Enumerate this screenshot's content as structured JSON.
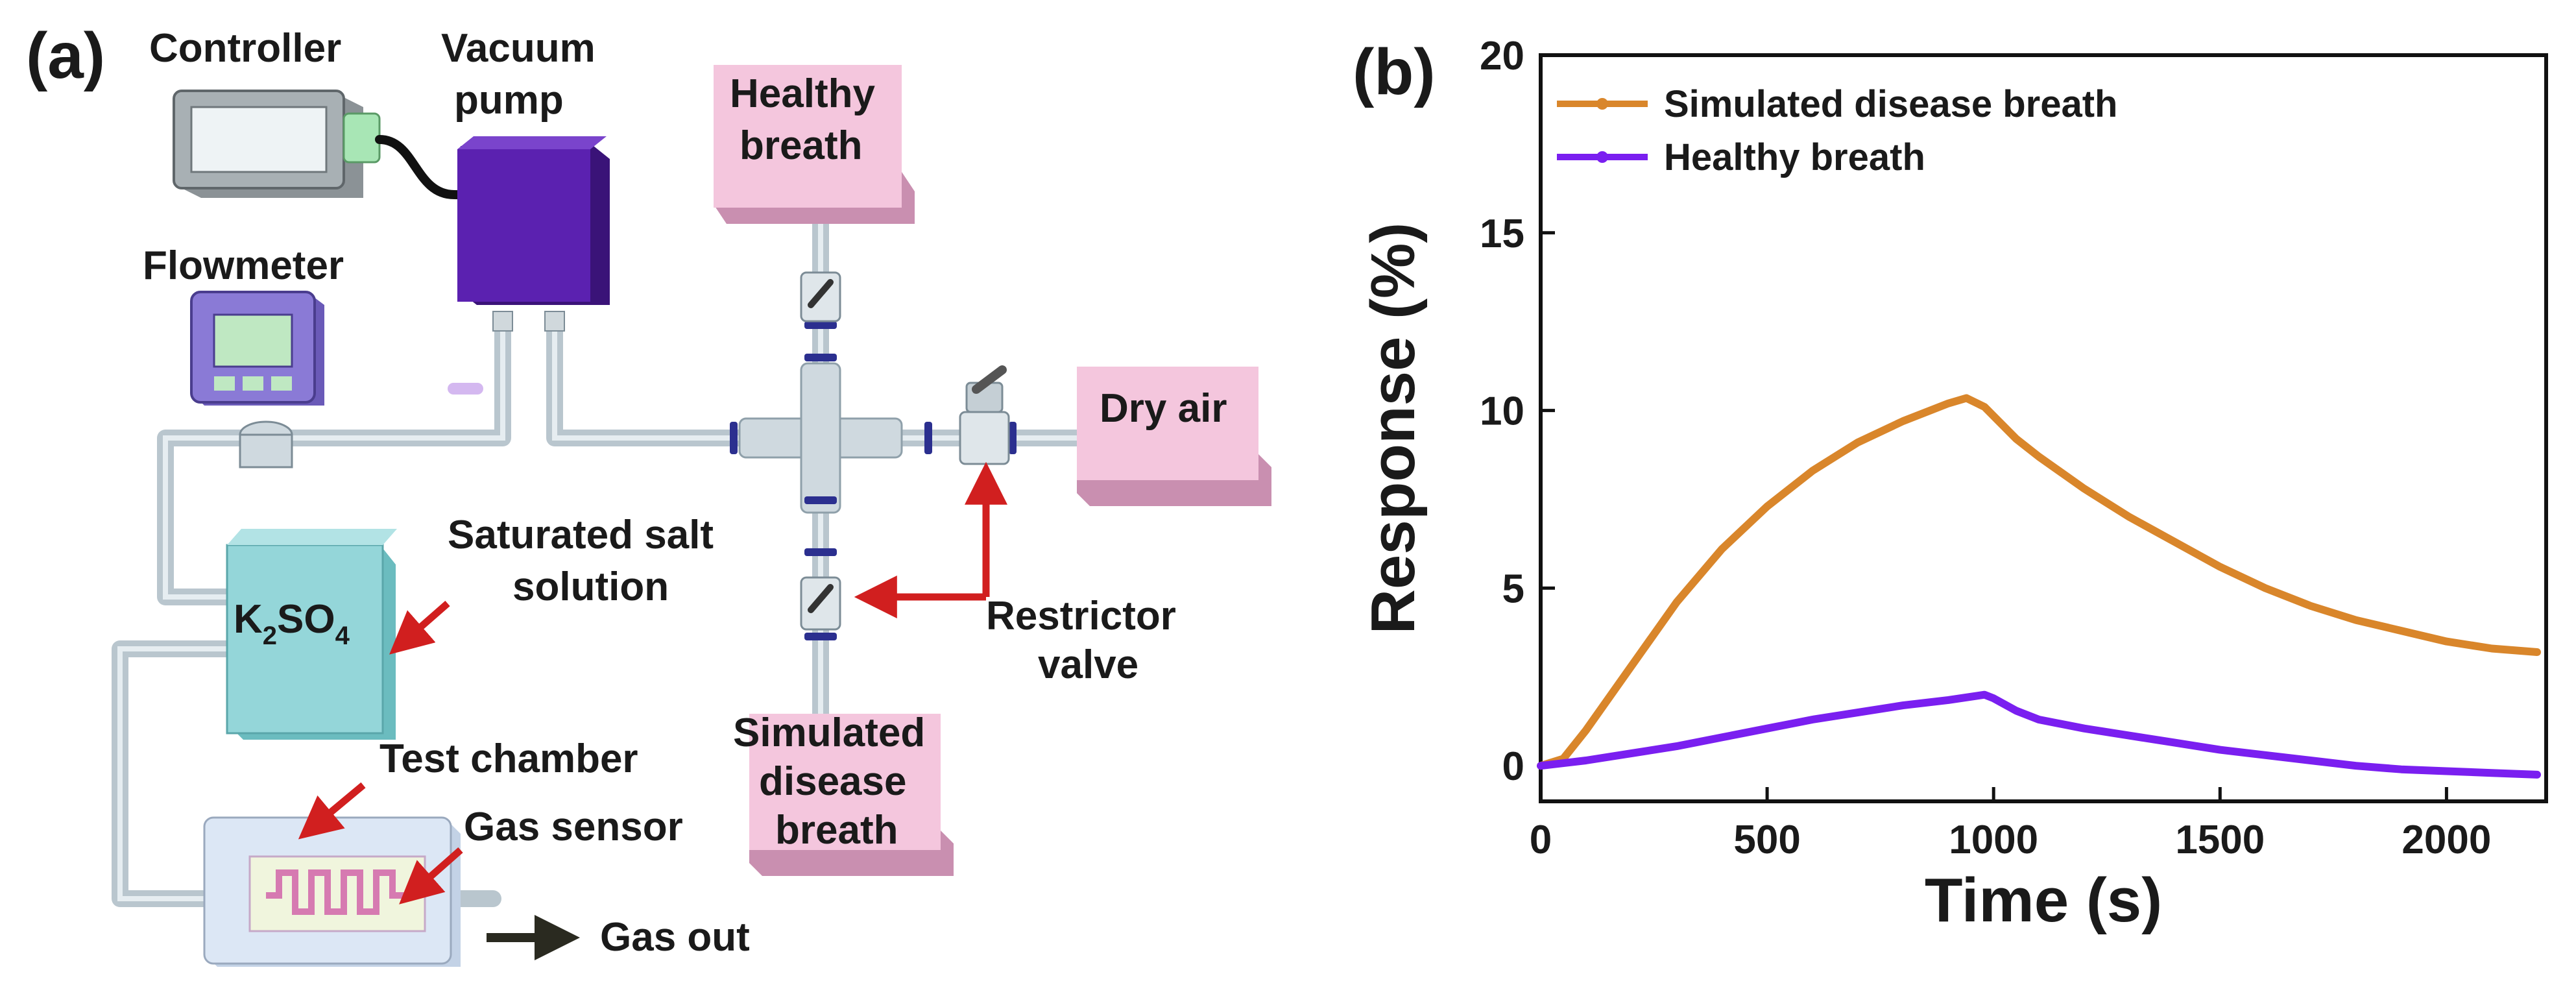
{
  "panel_a": {
    "label": "(a)",
    "components": {
      "controller": "Controller",
      "vacuum_pump_line1": "Vacuum",
      "vacuum_pump_line2": "pump",
      "healthy_breath_line1": "Healthy",
      "healthy_breath_line2": "breath",
      "flowmeter": "Flowmeter",
      "dry_air": "Dry air",
      "saturated_salt_line1": "Saturated salt",
      "saturated_salt_line2": "solution",
      "salt_formula_k": "K",
      "salt_formula_sub1": "2",
      "salt_formula_so": "SO",
      "salt_formula_sub2": "4",
      "restrictor_line1": "Restrictor",
      "restrictor_line2": "valve",
      "simulated_line1": "Simulated",
      "simulated_line2": "disease",
      "simulated_line3": "breath",
      "test_chamber": "Test chamber",
      "gas_sensor": "Gas sensor",
      "gas_out": "Gas out"
    },
    "colors": {
      "pink_box": "#f4c6dd",
      "pump": "#4d1a99",
      "salt_box": "#8fd3d6",
      "pipe": "#c8d3da",
      "arrow": "#d11f1f"
    }
  },
  "panel_b": {
    "label": "(b)"
  },
  "chart_data": {
    "type": "line",
    "title": "",
    "xlabel": "Time (s)",
    "ylabel": "Response (%)",
    "xlim": [
      0,
      2220
    ],
    "ylim": [
      -1,
      20
    ],
    "xticks": [
      0,
      500,
      1000,
      1500,
      2000
    ],
    "yticks": [
      0,
      5,
      10,
      15,
      20
    ],
    "legend_position": "top-left",
    "series": [
      {
        "name": "Simulated disease breath",
        "color": "#d9862b",
        "x": [
          0,
          50,
          100,
          200,
          300,
          400,
          500,
          600,
          700,
          800,
          900,
          940,
          980,
          1050,
          1100,
          1200,
          1300,
          1400,
          1500,
          1600,
          1700,
          1800,
          1900,
          2000,
          2100,
          2200
        ],
        "y": [
          0,
          0.2,
          1.0,
          2.8,
          4.6,
          6.1,
          7.3,
          8.3,
          9.1,
          9.7,
          10.2,
          10.35,
          10.1,
          9.2,
          8.7,
          7.8,
          7.0,
          6.3,
          5.6,
          5.0,
          4.5,
          4.1,
          3.8,
          3.5,
          3.3,
          3.2
        ]
      },
      {
        "name": "Healthy breath",
        "color": "#7a1ff0",
        "x": [
          0,
          100,
          200,
          300,
          400,
          500,
          560,
          600,
          700,
          800,
          900,
          980,
          1000,
          1050,
          1100,
          1200,
          1300,
          1400,
          1500,
          1600,
          1700,
          1800,
          1900,
          2000,
          2100,
          2200
        ],
        "y": [
          0,
          0.15,
          0.35,
          0.55,
          0.8,
          1.05,
          1.2,
          1.3,
          1.5,
          1.7,
          1.85,
          2.0,
          1.9,
          1.55,
          1.3,
          1.05,
          0.85,
          0.65,
          0.45,
          0.3,
          0.15,
          0.0,
          -0.1,
          -0.15,
          -0.2,
          -0.25
        ]
      }
    ]
  }
}
